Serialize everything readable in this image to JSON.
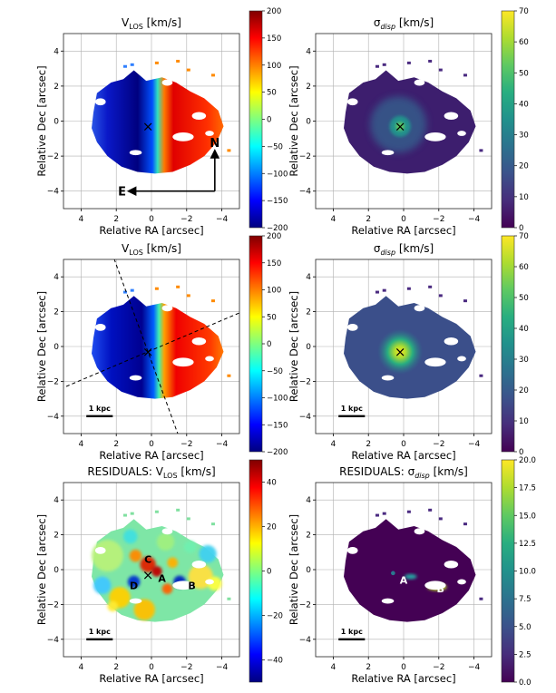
{
  "figure": {
    "x_label": "Relative RA [arcsec]",
    "y_label": "Relative Dec [arcsec]",
    "x_ticks": [
      "4",
      "2",
      "0",
      "−2",
      "−4"
    ],
    "y_ticks": [
      "4",
      "2",
      "0",
      "−2",
      "−4"
    ],
    "scale_bar_label": "1 kpc",
    "compass": {
      "north": "N",
      "east": "E"
    },
    "center_marker": "×",
    "colormaps": {
      "velocity": "jet",
      "dispersion": "viridis"
    }
  },
  "chart_data": [
    {
      "type": "heatmap",
      "id": "observed-velocity",
      "title": "V_LOS [km/s]",
      "title_main": "V",
      "title_sub": "LOS",
      "title_unit": " [km/s]",
      "xlabel": "Relative RA [arcsec]",
      "ylabel": "Relative Dec [arcsec]",
      "xlim": [
        5,
        -5
      ],
      "ylim": [
        -5,
        5
      ],
      "colorbar": {
        "range": [
          -200,
          200
        ],
        "ticks": [
          "200",
          "150",
          "100",
          "50",
          "0",
          "−50",
          "−100",
          "−150",
          "−200"
        ]
      },
      "center": [
        0.2,
        -0.3
      ],
      "compass": true,
      "scale_bar": false,
      "pa_lines": false
    },
    {
      "type": "heatmap",
      "id": "observed-dispersion",
      "title": "σ_disp [km/s]",
      "title_main": "σ",
      "title_sub": "disp",
      "title_unit": " [km/s]",
      "xlabel": "Relative RA [arcsec]",
      "ylabel": "Relative Dec [arcsec]",
      "xlim": [
        5,
        -5
      ],
      "ylim": [
        -5,
        5
      ],
      "colorbar": {
        "range": [
          0,
          70
        ],
        "ticks": [
          "70",
          "60",
          "50",
          "40",
          "30",
          "20",
          "10",
          "0"
        ]
      },
      "center": [
        0.2,
        -0.3
      ]
    },
    {
      "type": "heatmap",
      "id": "model-velocity",
      "title": "V_LOS [km/s]",
      "title_main": "V",
      "title_sub": "LOS",
      "title_unit": " [km/s]",
      "xlabel": "Relative RA [arcsec]",
      "ylabel": "Relative Dec [arcsec]",
      "xlim": [
        5,
        -5
      ],
      "ylim": [
        -5,
        5
      ],
      "colorbar": {
        "range": [
          -200,
          200
        ],
        "ticks": [
          "200",
          "150",
          "100",
          "50",
          "0",
          "−50",
          "−100",
          "−150",
          "−200"
        ]
      },
      "center": [
        0.2,
        -0.3
      ],
      "scale_bar": true,
      "pa_lines": true
    },
    {
      "type": "heatmap",
      "id": "model-dispersion",
      "title": "σ_disp [km/s]",
      "title_main": "σ",
      "title_sub": "disp",
      "title_unit": " [km/s]",
      "xlabel": "Relative RA [arcsec]",
      "ylabel": "Relative Dec [arcsec]",
      "xlim": [
        5,
        -5
      ],
      "ylim": [
        -5,
        5
      ],
      "colorbar": {
        "range": [
          0,
          70
        ],
        "ticks": [
          "70",
          "60",
          "50",
          "40",
          "30",
          "20",
          "10",
          "0"
        ]
      },
      "center": [
        0.2,
        -0.3
      ],
      "scale_bar": true
    },
    {
      "type": "heatmap",
      "id": "residual-velocity",
      "title": "RESIDUALS: V_LOS [km/s]",
      "title_main": "RESIDUALS: V",
      "title_sub": "LOS",
      "title_unit": " [km/s]",
      "xlabel": "Relative RA [arcsec]",
      "ylabel": "Relative Dec [arcsec]",
      "xlim": [
        5,
        -5
      ],
      "ylim": [
        -5,
        5
      ],
      "colorbar": {
        "range": [
          -50,
          50
        ],
        "ticks": [
          "40",
          "20",
          "0",
          "−20",
          "−40"
        ]
      },
      "center": [
        0.2,
        -0.3
      ],
      "scale_bar": true,
      "annotations": [
        {
          "label": "C",
          "x": 0.2,
          "y": 0.6
        },
        {
          "label": "A",
          "x": -0.6,
          "y": -0.5
        },
        {
          "label": "B",
          "x": -2.3,
          "y": -0.9
        },
        {
          "label": "D",
          "x": 1.0,
          "y": -0.9
        }
      ]
    },
    {
      "type": "heatmap",
      "id": "residual-dispersion",
      "title": "RESIDUALS: σ_disp [km/s]",
      "title_main": "RESIDUALS: σ",
      "title_sub": "disp",
      "title_unit": " [km/s]",
      "xlabel": "Relative RA [arcsec]",
      "ylabel": "Relative Dec [arcsec]",
      "xlim": [
        5,
        -5
      ],
      "ylim": [
        -5,
        5
      ],
      "colorbar": {
        "range": [
          0,
          20
        ],
        "ticks": [
          "20.0",
          "17.5",
          "15.0",
          "12.5",
          "10.0",
          "7.5",
          "5.0",
          "2.5",
          "0.0"
        ]
      },
      "scale_bar": true,
      "annotations": [
        {
          "label": "A",
          "x": 0.0,
          "y": -0.6
        },
        {
          "label": "B",
          "x": -2.1,
          "y": -1.1
        }
      ]
    }
  ]
}
